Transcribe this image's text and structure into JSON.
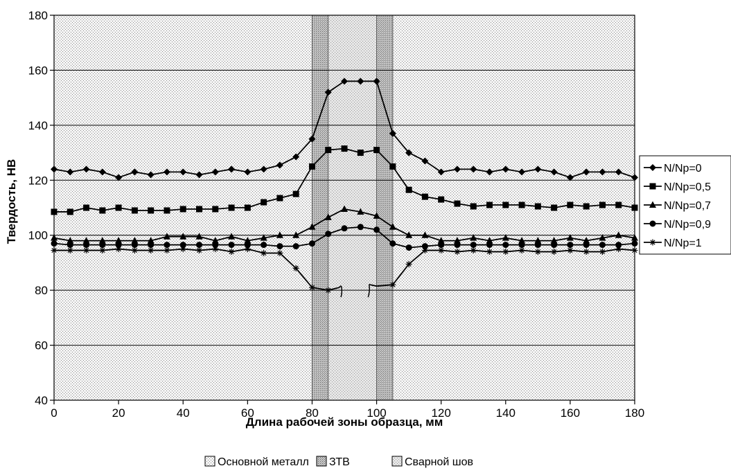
{
  "chart_data": {
    "type": "line",
    "title": "",
    "xlabel": "Длина рабочей зоны образца, мм",
    "ylabel": "Твердость, НВ",
    "xlim": [
      0,
      180
    ],
    "ylim": [
      40,
      180
    ],
    "x_ticks": [
      "0",
      "20",
      "40",
      "60",
      "80",
      "100",
      "120",
      "140",
      "160",
      "180"
    ],
    "y_ticks": [
      "40",
      "60",
      "80",
      "100",
      "120",
      "140",
      "160",
      "180"
    ],
    "grid": "horizontal",
    "legend_placement": "right",
    "zones": [
      {
        "name": "Основной металл",
        "from": 0,
        "to": 80
      },
      {
        "name": "ЗТВ",
        "from": 80,
        "to": 85
      },
      {
        "name": "Сварной шов",
        "from": 85,
        "to": 100
      },
      {
        "name": "ЗТВ",
        "from": 100,
        "to": 105
      },
      {
        "name": "Основной металл",
        "from": 105,
        "to": 180
      }
    ],
    "zone_legend": [
      "Основной металл",
      "ЗТВ",
      "Сварной шов"
    ],
    "series": [
      {
        "name": "N/Np=0",
        "marker": "diamond",
        "x": [
          0,
          5,
          10,
          15,
          20,
          25,
          30,
          35,
          40,
          45,
          50,
          55,
          60,
          65,
          70,
          75,
          80,
          85,
          90,
          95,
          100,
          105,
          110,
          115,
          120,
          125,
          130,
          135,
          140,
          145,
          150,
          155,
          160,
          165,
          170,
          175,
          180
        ],
        "values": [
          124,
          123,
          124,
          123,
          121,
          123,
          122,
          123,
          123,
          122,
          123,
          124,
          123,
          124,
          125.5,
          128.5,
          135,
          152,
          156,
          156,
          156,
          137,
          130,
          127,
          123,
          124,
          124,
          123,
          124,
          123,
          124,
          123,
          121,
          123,
          123,
          123,
          121
        ]
      },
      {
        "name": "N/Np=0,5",
        "marker": "square",
        "x": [
          0,
          5,
          10,
          15,
          20,
          25,
          30,
          35,
          40,
          45,
          50,
          55,
          60,
          65,
          70,
          75,
          80,
          85,
          90,
          95,
          100,
          105,
          110,
          115,
          120,
          125,
          130,
          135,
          140,
          145,
          150,
          155,
          160,
          165,
          170,
          175,
          180
        ],
        "values": [
          108.5,
          108.5,
          110,
          109,
          110,
          109,
          109,
          109,
          109.5,
          109.5,
          109.5,
          110,
          110,
          112,
          113.5,
          115,
          125,
          131,
          131.5,
          130,
          131,
          125,
          116.5,
          114,
          113,
          111.5,
          110.5,
          111,
          111,
          111,
          110.5,
          110,
          111,
          110.5,
          111,
          111,
          110
        ]
      },
      {
        "name": "N/Np=0,7",
        "marker": "triangle",
        "x": [
          0,
          5,
          10,
          15,
          20,
          25,
          30,
          35,
          40,
          45,
          50,
          55,
          60,
          65,
          70,
          75,
          80,
          85,
          90,
          95,
          100,
          105,
          110,
          115,
          120,
          125,
          130,
          135,
          140,
          145,
          150,
          155,
          160,
          165,
          170,
          175,
          180
        ],
        "values": [
          99,
          98,
          98,
          98,
          98,
          98,
          98,
          99.5,
          99.5,
          99.5,
          98,
          99.5,
          98,
          99,
          100,
          100,
          103,
          106.5,
          109.5,
          108.5,
          107,
          103,
          100,
          100,
          98,
          98,
          99,
          98,
          99,
          98,
          98,
          98,
          99,
          98,
          99,
          100,
          99
        ]
      },
      {
        "name": "N/Np=0,9",
        "marker": "circle",
        "x": [
          0,
          5,
          10,
          15,
          20,
          25,
          30,
          35,
          40,
          45,
          50,
          55,
          60,
          65,
          70,
          75,
          80,
          85,
          90,
          95,
          100,
          105,
          110,
          115,
          120,
          125,
          130,
          135,
          140,
          145,
          150,
          155,
          160,
          165,
          170,
          175,
          180
        ],
        "values": [
          97,
          96.5,
          96.5,
          96.5,
          96.5,
          96.5,
          96.5,
          96.5,
          96.5,
          96.5,
          96.5,
          96.5,
          96.5,
          96.5,
          96,
          96,
          97,
          100.5,
          102.5,
          103,
          102,
          97,
          95.5,
          96,
          96.5,
          96.5,
          96.5,
          96.5,
          96.5,
          96.5,
          96.5,
          96.5,
          96.5,
          96.5,
          96.5,
          96.5,
          97
        ]
      },
      {
        "name": "N/Np=1",
        "marker": "star",
        "x": [
          0,
          5,
          10,
          15,
          20,
          25,
          30,
          35,
          40,
          45,
          50,
          55,
          60,
          65,
          70,
          75,
          80,
          85,
          88.5
        ],
        "values": [
          94.5,
          94.5,
          94.5,
          94.5,
          95,
          94.5,
          94.5,
          94.5,
          95,
          94.5,
          95,
          94,
          95,
          93.5,
          93.5,
          88,
          81,
          80,
          81
        ]
      },
      {
        "name": "N/Np=1",
        "marker": "star",
        "x": [
          98,
          100,
          105,
          110,
          115,
          120,
          125,
          130,
          135,
          140,
          145,
          150,
          155,
          160,
          165,
          170,
          175,
          180
        ],
        "values": [
          82,
          81.5,
          82,
          89.5,
          94.5,
          94.5,
          94,
          94.5,
          94,
          94,
          94.5,
          94,
          94,
          94.5,
          94,
          94,
          95,
          94.5
        ]
      }
    ]
  }
}
